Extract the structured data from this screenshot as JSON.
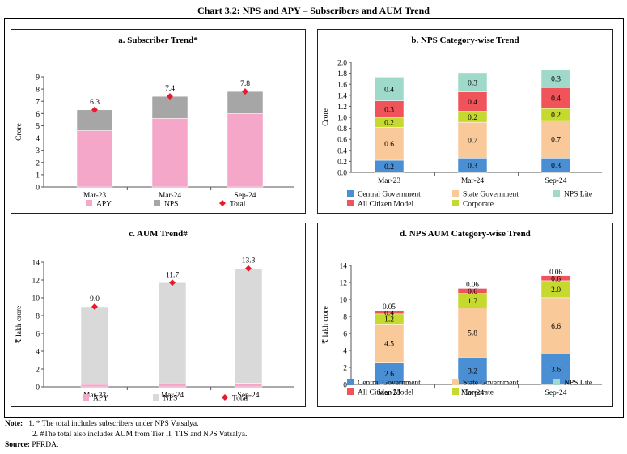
{
  "page_title": "Chart 3.2: NPS and APY – Subscribers and AUM Trend",
  "colors": {
    "APY": "#f4a7c8",
    "NPS_grey": "#a6a6a6",
    "NPS_light": "#d9d9d9",
    "Total": "#e8192c",
    "Central Government": "#4a8fd4",
    "State  Government": "#f9c99a",
    "NPS Lite": "#9fd9c9",
    "All Citizen Model": "#f0545a",
    "Corporate": "#c6d92e"
  },
  "chart_data": [
    {
      "id": "a",
      "type": "bar",
      "stacked": true,
      "title": "a. Subscriber Trend*",
      "ylabel": "Crore",
      "ylim": [
        0,
        9
      ],
      "yticks": [
        "0",
        "1",
        "2",
        "3",
        "4",
        "5",
        "6",
        "7",
        "8",
        "9"
      ],
      "categories": [
        "Mar-23",
        "Mar-24",
        "Sep-24"
      ],
      "series": [
        {
          "name": "APY",
          "values": [
            4.6,
            5.6,
            6.0
          ]
        },
        {
          "name": "NPS",
          "values": [
            1.7,
            1.8,
            1.8
          ]
        }
      ],
      "total": {
        "name": "Total",
        "values": [
          6.3,
          7.4,
          7.8
        ],
        "labels": [
          "6.3",
          "7.4",
          "7.8"
        ]
      },
      "legend": [
        "APY",
        "NPS",
        "Total"
      ]
    },
    {
      "id": "b",
      "type": "bar",
      "stacked": true,
      "title": "b. NPS Category-wise Trend",
      "ylabel": "Crore",
      "ylim": [
        0,
        2.0
      ],
      "yticks": [
        "0.0",
        "0.2",
        "0.4",
        "0.6",
        "0.8",
        "1.0",
        "1.2",
        "1.4",
        "1.6",
        "1.8",
        "2.0"
      ],
      "categories": [
        "Mar-23",
        "Mar-24",
        "Sep-24"
      ],
      "series": [
        {
          "name": "Central Government",
          "values": [
            0.22,
            0.26,
            0.26
          ],
          "labels": [
            "0.2",
            "0.3",
            "0.3"
          ]
        },
        {
          "name": "State  Government",
          "values": [
            0.6,
            0.65,
            0.68
          ],
          "labels": [
            "0.6",
            "0.7",
            "0.7"
          ]
        },
        {
          "name": "Corporate",
          "values": [
            0.18,
            0.2,
            0.22
          ],
          "labels": [
            "0.2",
            "0.2",
            "0.2"
          ]
        },
        {
          "name": "All Citizen Model",
          "values": [
            0.3,
            0.35,
            0.38
          ],
          "labels": [
            "0.3",
            "0.4",
            "0.4"
          ]
        },
        {
          "name": "NPS Lite",
          "values": [
            0.43,
            0.35,
            0.33
          ],
          "labels": [
            "0.4",
            "0.3",
            "0.3"
          ]
        }
      ],
      "legend": [
        "Central Government",
        "State  Government",
        "NPS Lite",
        "All Citizen Model",
        "Corporate"
      ]
    },
    {
      "id": "c",
      "type": "bar",
      "stacked": true,
      "title": "c. AUM Trend#",
      "ylabel": "₹ lakh crore",
      "ylim": [
        0,
        14
      ],
      "yticks": [
        "0",
        "2",
        "4",
        "6",
        "8",
        "10",
        "12",
        "14"
      ],
      "categories": [
        "Mar-23",
        "Mar-24",
        "Sep-24"
      ],
      "series": [
        {
          "name": "APY",
          "values": [
            0.28,
            0.35,
            0.4
          ]
        },
        {
          "name": "NPS",
          "values": [
            8.72,
            11.35,
            12.9
          ]
        }
      ],
      "total": {
        "name": "Total",
        "values": [
          9.0,
          11.7,
          13.3
        ],
        "labels": [
          "9.0",
          "11.7",
          "13.3"
        ]
      },
      "legend": [
        "APY",
        "NPS",
        "Total"
      ]
    },
    {
      "id": "d",
      "type": "bar",
      "stacked": true,
      "title": "d. NPS AUM Category-wise Trend",
      "ylabel": "₹ lakh crore",
      "ylim": [
        0,
        14
      ],
      "yticks": [
        "0",
        "2",
        "4",
        "6",
        "8",
        "10",
        "12",
        "14"
      ],
      "categories": [
        "Mar-23",
        "Mar-24",
        "Sep-24"
      ],
      "series": [
        {
          "name": "Central Government",
          "values": [
            2.6,
            3.2,
            3.6
          ],
          "labels": [
            "2.6",
            "3.2",
            "3.6"
          ]
        },
        {
          "name": "State  Government",
          "values": [
            4.5,
            5.8,
            6.6
          ],
          "labels": [
            "4.5",
            "5.8",
            "6.6"
          ]
        },
        {
          "name": "Corporate",
          "values": [
            1.2,
            1.7,
            2.0
          ],
          "labels": [
            "1.2",
            "1.7",
            "2.0"
          ]
        },
        {
          "name": "All Citizen Model",
          "values": [
            0.4,
            0.6,
            0.6
          ],
          "labels": [
            "0.4",
            "0.6",
            "0.6"
          ]
        },
        {
          "name": "NPS Lite",
          "values": [
            0.05,
            0.06,
            0.06
          ],
          "labels": [
            "0.05",
            "0.06",
            "0.06"
          ]
        }
      ],
      "legend": [
        "Central Government",
        "State  Government",
        "NPS Lite",
        "All Citizen Model",
        "Corporate"
      ]
    }
  ],
  "notes": {
    "label": "Note:",
    "items": [
      "1.  * The total includes subscribers under NPS Vatsalya.",
      "2.  #The total also includes AUM from Tier II, TTS and NPS Vatsalya."
    ],
    "source_label": "Source:",
    "source_text": "PFRDA."
  }
}
